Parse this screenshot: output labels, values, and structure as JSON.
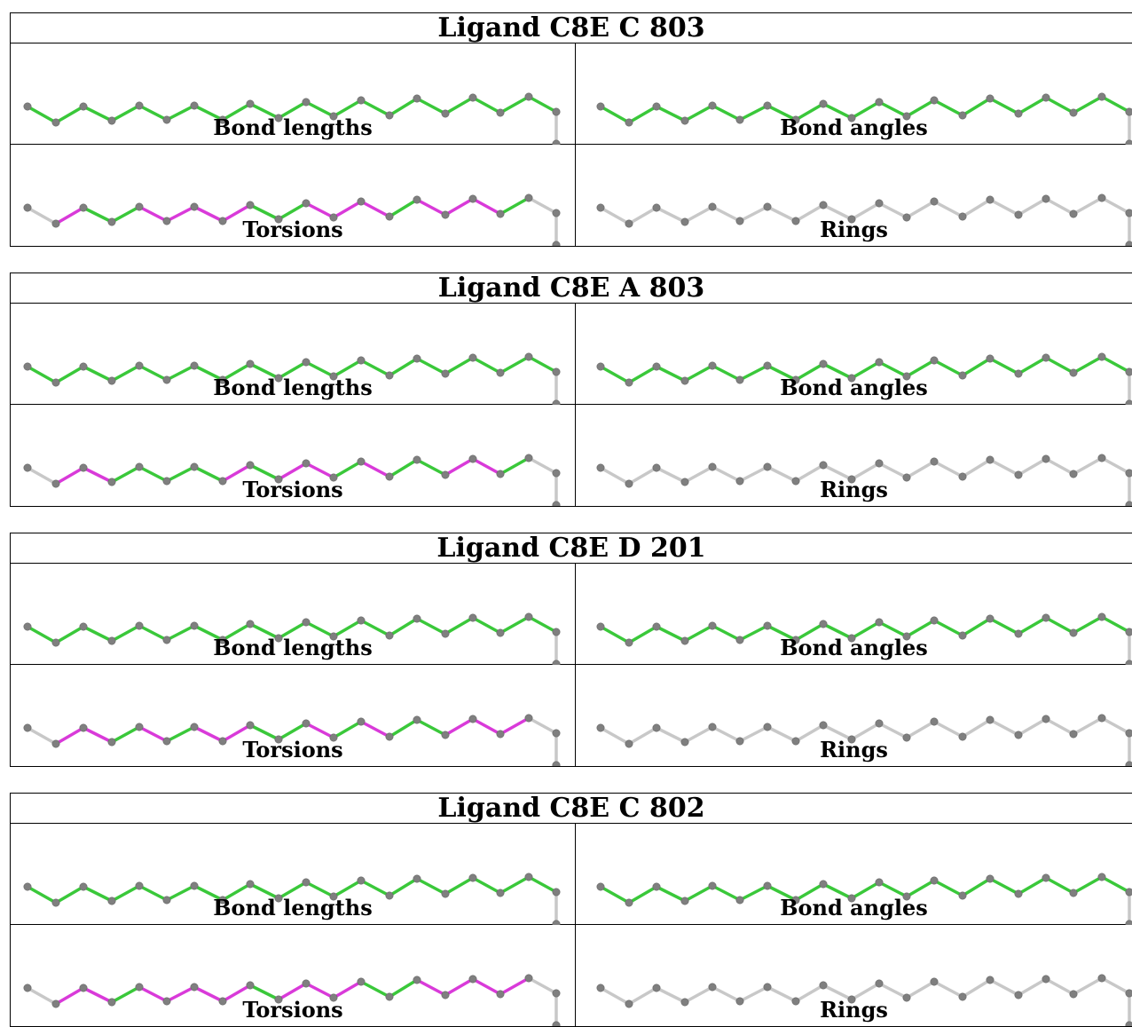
{
  "colors": {
    "ok": "#3ac83a",
    "outlier": "#d93ad9",
    "neutral": "#c8c8c8",
    "atom": "#7f7f7f"
  },
  "panel_labels": [
    "Bond lengths",
    "Bond angles",
    "Torsions",
    "Rings"
  ],
  "ligands": [
    {
      "title": "Ligand C8E C 803",
      "panels": [
        {
          "label": "Bond lengths",
          "bond_status": [
            "ok",
            "ok",
            "ok",
            "ok",
            "ok",
            "ok",
            "ok",
            "ok",
            "ok",
            "ok",
            "ok",
            "ok",
            "ok",
            "ok",
            "ok",
            "ok",
            "ok",
            "ok",
            "ok"
          ]
        },
        {
          "label": "Bond angles",
          "bond_status": [
            "ok",
            "ok",
            "ok",
            "ok",
            "ok",
            "ok",
            "ok",
            "ok",
            "ok",
            "ok",
            "ok",
            "ok",
            "ok",
            "ok",
            "ok",
            "ok",
            "ok",
            "ok",
            "ok"
          ]
        },
        {
          "label": "Torsions",
          "bond_status": [
            "neutral",
            "outlier",
            "ok",
            "ok",
            "outlier",
            "outlier",
            "outlier",
            "outlier",
            "ok",
            "ok",
            "outlier",
            "outlier",
            "outlier",
            "ok",
            "outlier",
            "outlier",
            "outlier",
            "ok",
            "neutral"
          ]
        },
        {
          "label": "Rings",
          "bond_status": [
            "neutral",
            "neutral",
            "neutral",
            "neutral",
            "neutral",
            "neutral",
            "neutral",
            "neutral",
            "neutral",
            "neutral",
            "neutral",
            "neutral",
            "neutral",
            "neutral",
            "neutral",
            "neutral",
            "neutral",
            "neutral",
            "neutral"
          ]
        }
      ]
    },
    {
      "title": "Ligand C8E A 803",
      "panels": [
        {
          "label": "Bond lengths",
          "bond_status": [
            "ok",
            "ok",
            "ok",
            "ok",
            "ok",
            "ok",
            "ok",
            "ok",
            "ok",
            "ok",
            "ok",
            "ok",
            "ok",
            "ok",
            "ok",
            "ok",
            "ok",
            "ok",
            "ok"
          ]
        },
        {
          "label": "Bond angles",
          "bond_status": [
            "ok",
            "ok",
            "ok",
            "ok",
            "ok",
            "ok",
            "ok",
            "ok",
            "ok",
            "ok",
            "ok",
            "ok",
            "ok",
            "ok",
            "ok",
            "ok",
            "ok",
            "ok",
            "ok"
          ]
        },
        {
          "label": "Torsions",
          "bond_status": [
            "neutral",
            "outlier",
            "outlier",
            "ok",
            "ok",
            "ok",
            "ok",
            "outlier",
            "ok",
            "outlier",
            "outlier",
            "ok",
            "outlier",
            "ok",
            "ok",
            "outlier",
            "outlier",
            "ok",
            "neutral"
          ]
        },
        {
          "label": "Rings",
          "bond_status": [
            "neutral",
            "neutral",
            "neutral",
            "neutral",
            "neutral",
            "neutral",
            "neutral",
            "neutral",
            "neutral",
            "neutral",
            "neutral",
            "neutral",
            "neutral",
            "neutral",
            "neutral",
            "neutral",
            "neutral",
            "neutral",
            "neutral"
          ]
        }
      ]
    },
    {
      "title": "Ligand C8E D 201",
      "panels": [
        {
          "label": "Bond lengths",
          "bond_status": [
            "ok",
            "ok",
            "ok",
            "ok",
            "ok",
            "ok",
            "ok",
            "ok",
            "ok",
            "ok",
            "ok",
            "ok",
            "ok",
            "ok",
            "ok",
            "ok",
            "ok",
            "ok",
            "ok"
          ]
        },
        {
          "label": "Bond angles",
          "bond_status": [
            "ok",
            "ok",
            "ok",
            "ok",
            "ok",
            "ok",
            "ok",
            "ok",
            "ok",
            "ok",
            "ok",
            "ok",
            "ok",
            "ok",
            "ok",
            "ok",
            "ok",
            "ok",
            "ok"
          ]
        },
        {
          "label": "Torsions",
          "bond_status": [
            "neutral",
            "outlier",
            "outlier",
            "ok",
            "outlier",
            "ok",
            "outlier",
            "outlier",
            "ok",
            "ok",
            "outlier",
            "ok",
            "outlier",
            "ok",
            "ok",
            "outlier",
            "outlier",
            "outlier",
            "neutral"
          ]
        },
        {
          "label": "Rings",
          "bond_status": [
            "neutral",
            "neutral",
            "neutral",
            "neutral",
            "neutral",
            "neutral",
            "neutral",
            "neutral",
            "neutral",
            "neutral",
            "neutral",
            "neutral",
            "neutral",
            "neutral",
            "neutral",
            "neutral",
            "neutral",
            "neutral",
            "neutral"
          ]
        }
      ]
    },
    {
      "title": "Ligand C8E C 802",
      "panels": [
        {
          "label": "Bond lengths",
          "bond_status": [
            "ok",
            "ok",
            "ok",
            "ok",
            "ok",
            "ok",
            "ok",
            "ok",
            "ok",
            "ok",
            "ok",
            "ok",
            "ok",
            "ok",
            "ok",
            "ok",
            "ok",
            "ok",
            "ok"
          ]
        },
        {
          "label": "Bond angles",
          "bond_status": [
            "ok",
            "ok",
            "ok",
            "ok",
            "ok",
            "ok",
            "ok",
            "ok",
            "ok",
            "ok",
            "ok",
            "ok",
            "ok",
            "ok",
            "ok",
            "ok",
            "ok",
            "ok",
            "ok"
          ]
        },
        {
          "label": "Torsions",
          "bond_status": [
            "neutral",
            "outlier",
            "outlier",
            "ok",
            "outlier",
            "outlier",
            "outlier",
            "outlier",
            "ok",
            "outlier",
            "outlier",
            "outlier",
            "ok",
            "ok",
            "outlier",
            "outlier",
            "outlier",
            "outlier",
            "neutral"
          ]
        },
        {
          "label": "Rings",
          "bond_status": [
            "neutral",
            "neutral",
            "neutral",
            "neutral",
            "neutral",
            "neutral",
            "neutral",
            "neutral",
            "neutral",
            "neutral",
            "neutral",
            "neutral",
            "neutral",
            "neutral",
            "neutral",
            "neutral",
            "neutral",
            "neutral",
            "neutral"
          ]
        }
      ]
    }
  ]
}
